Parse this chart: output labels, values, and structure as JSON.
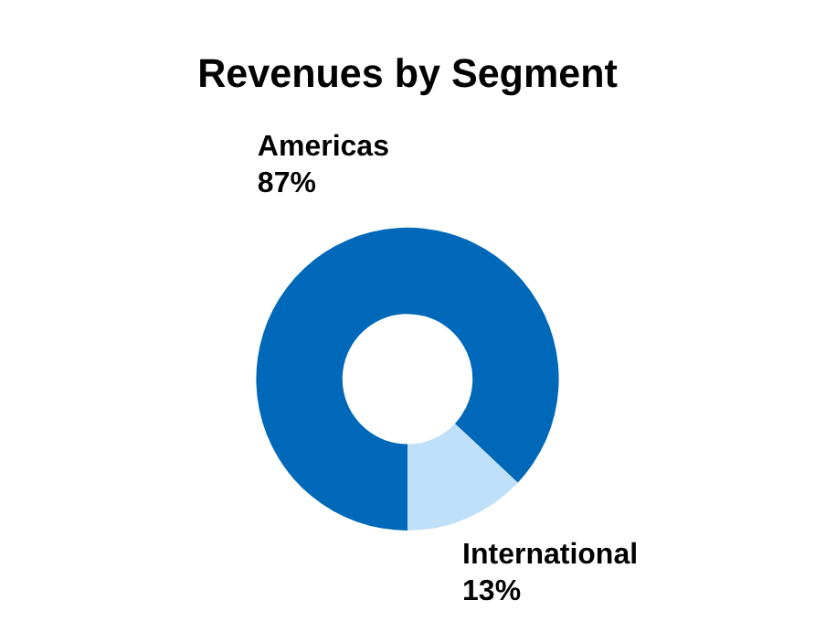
{
  "chart_data": {
    "type": "donut",
    "title": "Revenues by Segment",
    "categories": [
      "Americas",
      "International"
    ],
    "values": [
      87,
      13
    ],
    "value_labels": [
      "87%",
      "13%"
    ],
    "colors": [
      "#0068b9",
      "#bfe0f8"
    ],
    "legend": false
  }
}
